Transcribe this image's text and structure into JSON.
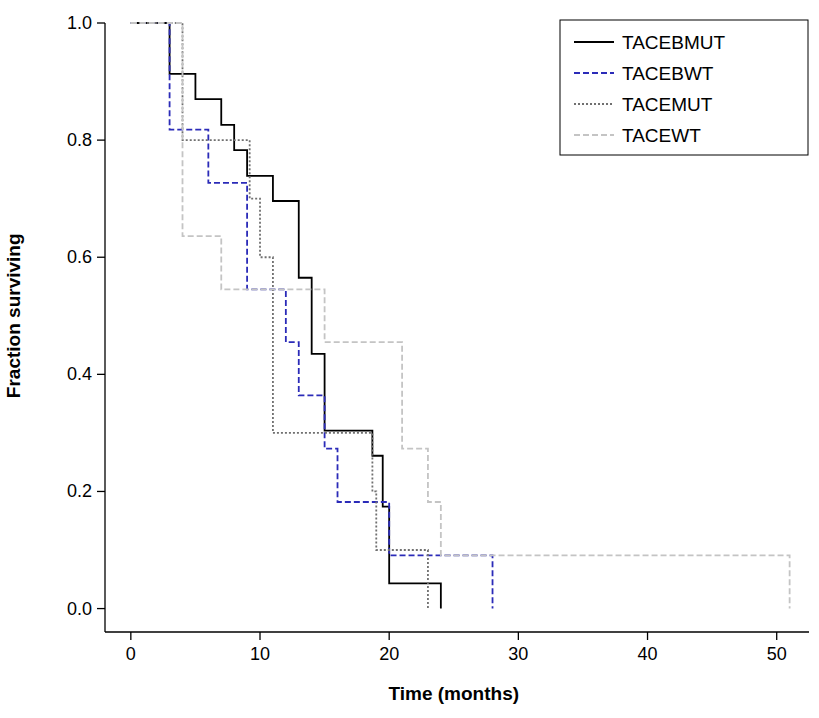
{
  "chart_data": {
    "type": "step",
    "x_label": "Time (months)",
    "y_label": "Fraction surviving",
    "xlim": [
      -2,
      52.5
    ],
    "ylim": [
      -0.04,
      1.0
    ],
    "xticks": [
      0,
      10,
      20,
      30,
      40,
      50
    ],
    "yticks": [
      {
        "value": 0,
        "label": "0.0"
      },
      {
        "value": 0.2,
        "label": "0.2"
      },
      {
        "value": 0.4,
        "label": "0.4"
      },
      {
        "value": 0.6,
        "label": "0.6"
      },
      {
        "value": 0.8,
        "label": "0.8"
      },
      {
        "value": 1,
        "label": "1.0"
      }
    ],
    "grid": false,
    "legend": "top-right",
    "series": [
      {
        "name": "TACEBMUT",
        "color": "#000000",
        "line_style": "solid",
        "x": [
          0,
          3,
          5,
          7,
          8,
          9,
          11,
          13,
          14,
          15,
          18.7,
          19.5,
          20,
          24
        ],
        "values": [
          1.0,
          0.913,
          0.87,
          0.826,
          0.783,
          0.739,
          0.696,
          0.565,
          0.435,
          0.304,
          0.261,
          0.174,
          0.043,
          0.0
        ]
      },
      {
        "name": "TACEBWT",
        "color": "#2b2bb8",
        "line_style": "dashed",
        "x": [
          0,
          3,
          6,
          9,
          12,
          13,
          15,
          16,
          20,
          28
        ],
        "values": [
          1.0,
          0.818,
          0.727,
          0.545,
          0.455,
          0.364,
          0.273,
          0.182,
          0.091,
          0.0
        ]
      },
      {
        "name": "TACEMUT",
        "color": "#707070",
        "line_style": "dotted",
        "x": [
          0,
          4,
          9.2,
          10,
          11,
          18.7,
          19,
          23
        ],
        "values": [
          1.0,
          0.8,
          0.7,
          0.6,
          0.3,
          0.2,
          0.1,
          0.0
        ]
      },
      {
        "name": "TACEWT",
        "color": "#c4c4c4",
        "line_style": "dashed",
        "x": [
          0,
          4,
          7,
          15,
          21,
          23,
          24,
          51
        ],
        "values": [
          1.0,
          0.636,
          0.545,
          0.455,
          0.273,
          0.182,
          0.091,
          0.0
        ]
      }
    ]
  }
}
